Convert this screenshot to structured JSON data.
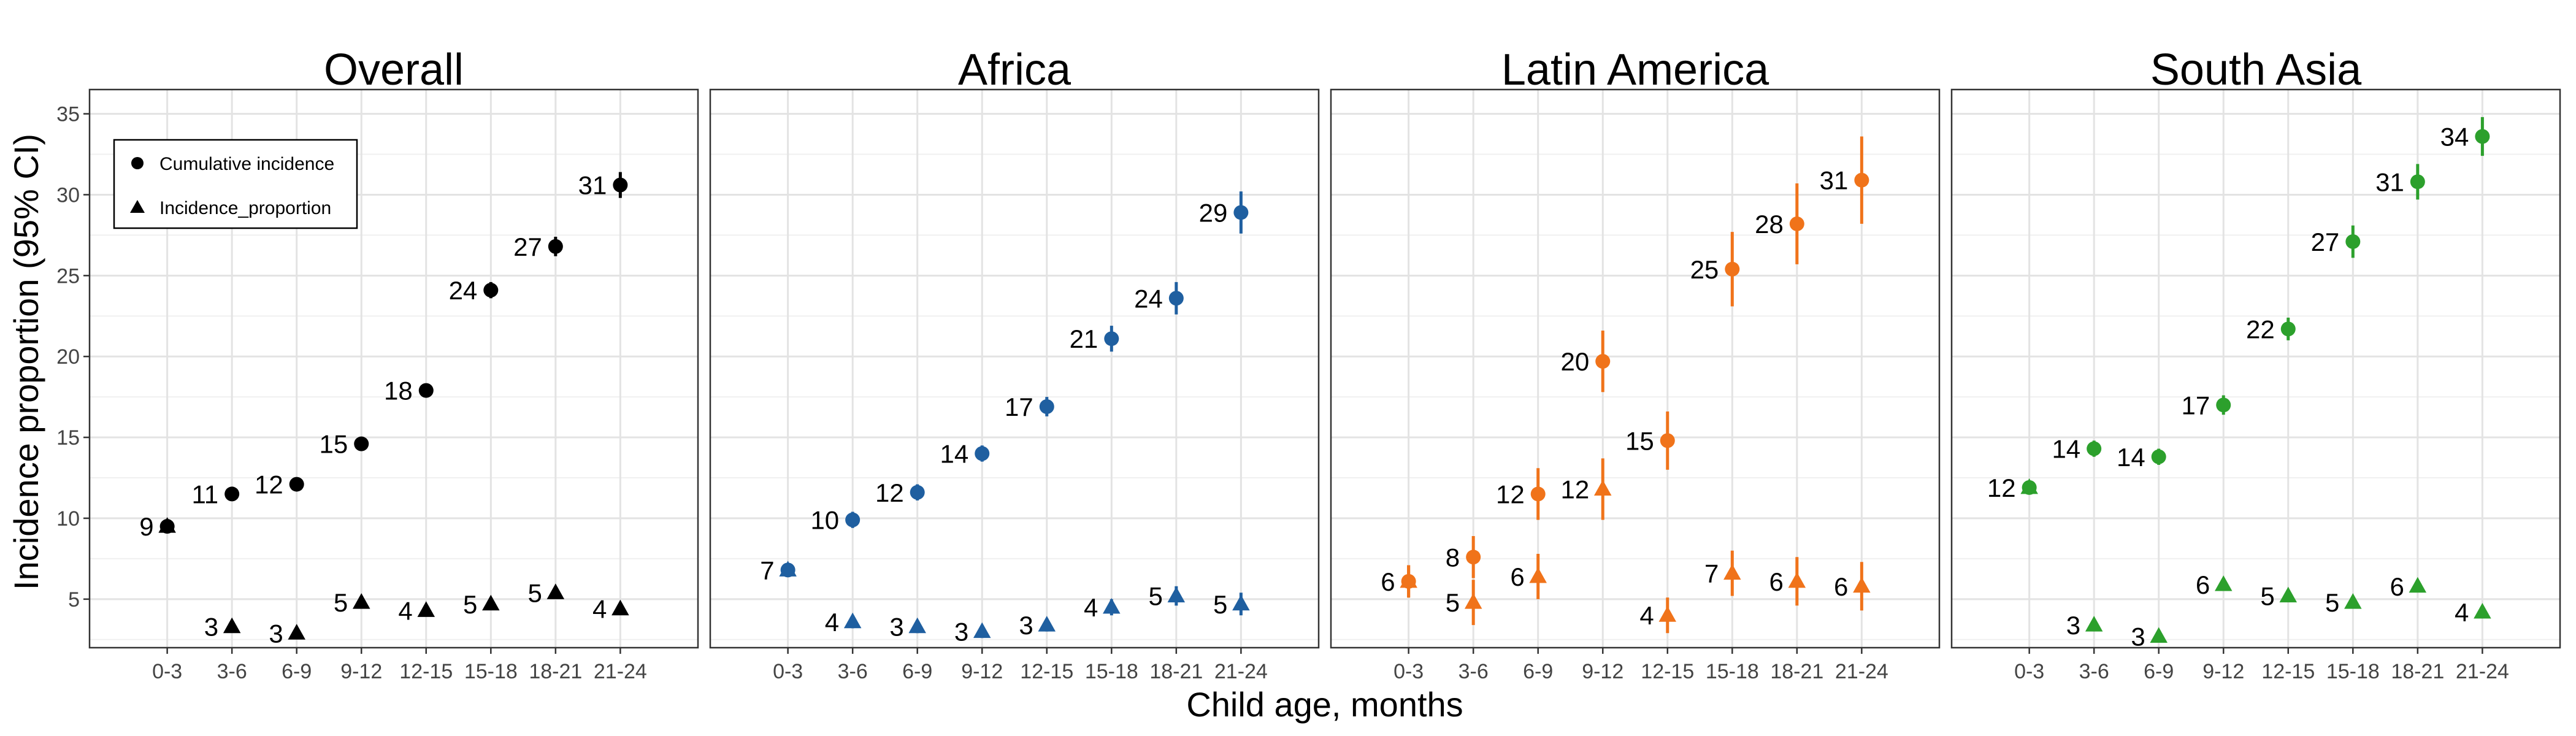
{
  "chart_data": {
    "type": "scatter",
    "xlabel": "Child age, months",
    "ylabel": "Incidence proportion (95% CI)",
    "ylim": [
      2,
      36.5
    ],
    "yticks": [
      5,
      10,
      15,
      20,
      25,
      30,
      35
    ],
    "categories": [
      "0-3",
      "3-6",
      "6-9",
      "9-12",
      "12-15",
      "15-18",
      "18-21",
      "21-24"
    ],
    "grid": true,
    "legend": {
      "placement": "top-left",
      "entries": [
        {
          "label": "Cumulative incidence",
          "marker": "circle"
        },
        {
          "label": "Incidence_proportion",
          "marker": "triangle"
        }
      ]
    },
    "panels": [
      {
        "title": "Overall",
        "color": "#000000",
        "series": [
          {
            "name": "Cumulative incidence",
            "marker": "circle",
            "values": [
              9.5,
              11.5,
              12.1,
              14.6,
              17.9,
              24.1,
              26.8,
              30.6
            ],
            "ci_low": [
              9.2,
              11.2,
              11.8,
              14.3,
              17.6,
              23.6,
              26.2,
              29.8
            ],
            "ci_high": [
              9.8,
              11.8,
              12.4,
              14.9,
              18.2,
              24.6,
              27.4,
              31.4
            ],
            "labels": [
              "9",
              "11",
              "12",
              "15",
              "18",
              "24",
              "27",
              "31"
            ]
          },
          {
            "name": "Incidence_proportion",
            "marker": "triangle",
            "values": [
              9.5,
              3.3,
              2.9,
              4.8,
              4.3,
              4.7,
              5.4,
              4.4
            ],
            "ci_low": [
              9.2,
              3.0,
              2.6,
              4.5,
              4.0,
              4.4,
              5.1,
              4.1
            ],
            "ci_high": [
              9.8,
              3.6,
              3.2,
              5.1,
              4.6,
              5.0,
              5.7,
              4.7
            ],
            "labels": [
              "",
              "3",
              "3",
              "5",
              "4",
              "5",
              "5",
              "4"
            ]
          }
        ]
      },
      {
        "title": "Africa",
        "color": "#1f5fa0",
        "series": [
          {
            "name": "Cumulative incidence",
            "marker": "circle",
            "values": [
              6.8,
              9.9,
              11.6,
              14.0,
              16.9,
              21.1,
              23.6,
              28.9
            ],
            "ci_low": [
              6.4,
              9.4,
              11.1,
              13.5,
              16.3,
              20.3,
              22.6,
              27.6
            ],
            "ci_high": [
              7.2,
              10.4,
              12.1,
              14.5,
              17.5,
              21.9,
              24.6,
              30.2
            ],
            "labels": [
              "7",
              "10",
              "12",
              "14",
              "17",
              "21",
              "24",
              "29"
            ]
          },
          {
            "name": "Incidence_proportion",
            "marker": "triangle",
            "values": [
              6.8,
              3.6,
              3.3,
              3.0,
              3.4,
              4.5,
              5.2,
              4.7
            ],
            "ci_low": [
              6.4,
              3.2,
              2.9,
              2.6,
              3.0,
              4.0,
              4.6,
              4.0
            ],
            "ci_high": [
              7.2,
              4.0,
              3.7,
              3.4,
              3.8,
              5.0,
              5.8,
              5.4
            ],
            "labels": [
              "",
              "4",
              "3",
              "3",
              "3",
              "4",
              "5",
              "5"
            ]
          }
        ]
      },
      {
        "title": "Latin America",
        "color": "#f0731a",
        "series": [
          {
            "name": "Cumulative incidence",
            "marker": "circle",
            "values": [
              6.1,
              7.6,
              11.5,
              19.7,
              14.8,
              25.4,
              28.2,
              30.9
            ],
            "ci_low": [
              5.1,
              6.3,
              9.9,
              17.8,
              13.0,
              23.1,
              25.7,
              28.2
            ],
            "ci_high": [
              7.1,
              8.9,
              13.1,
              21.6,
              16.6,
              27.7,
              30.7,
              33.6
            ],
            "labels": [
              "6",
              "8",
              "12",
              "20",
              "15",
              "25",
              "28",
              "31"
            ]
          },
          {
            "name": "Incidence_proportion",
            "marker": "triangle",
            "values": [
              6.1,
              4.8,
              6.4,
              11.8,
              4.0,
              6.6,
              6.1,
              5.8
            ],
            "ci_low": [
              5.1,
              3.4,
              5.0,
              9.9,
              2.9,
              5.2,
              4.6,
              4.3
            ],
            "ci_high": [
              7.1,
              6.2,
              7.8,
              13.7,
              5.1,
              8.0,
              7.6,
              7.3
            ],
            "labels": [
              "",
              "5",
              "6",
              "12",
              "4",
              "7",
              "6",
              "6"
            ]
          }
        ]
      },
      {
        "title": "South Asia",
        "color": "#2ca02c",
        "series": [
          {
            "name": "Cumulative incidence",
            "marker": "circle",
            "values": [
              11.9,
              14.3,
              13.8,
              17.0,
              21.7,
              27.1,
              30.8,
              33.6
            ],
            "ci_low": [
              11.5,
              13.8,
              13.3,
              16.4,
              21.0,
              26.1,
              29.7,
              32.4
            ],
            "ci_high": [
              12.3,
              14.8,
              14.3,
              17.6,
              22.4,
              28.1,
              31.9,
              34.8
            ],
            "labels": [
              "12",
              "14",
              "14",
              "17",
              "22",
              "27",
              "31",
              "34"
            ]
          },
          {
            "name": "Incidence_proportion",
            "marker": "triangle",
            "values": [
              11.9,
              3.4,
              2.7,
              5.9,
              5.2,
              4.8,
              5.8,
              4.2
            ],
            "ci_low": [
              11.5,
              3.1,
              2.4,
              5.6,
              4.9,
              4.5,
              5.5,
              3.9
            ],
            "ci_high": [
              12.3,
              3.7,
              3.0,
              6.2,
              5.5,
              5.1,
              6.1,
              4.5
            ],
            "labels": [
              "",
              "3",
              "3",
              "6",
              "5",
              "5",
              "6",
              "4"
            ]
          }
        ]
      }
    ]
  }
}
